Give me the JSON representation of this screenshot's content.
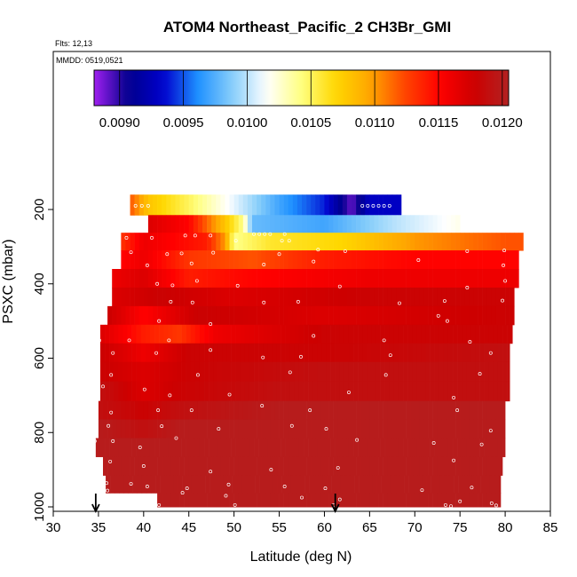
{
  "chart_data": {
    "type": "heatmap",
    "title": "ATOM4 Northeast_Pacific_2 CH3Br_GMI",
    "flights_label": "Flts: 12,13",
    "dates_label": "MMDD: 0519,0521",
    "xlabel": "Latitude (deg N)",
    "ylabel": "PSXC (mbar)",
    "xlim": [
      30,
      85
    ],
    "ylim": [
      1000,
      100
    ],
    "x_ticks": [
      30,
      35,
      40,
      45,
      50,
      55,
      60,
      65,
      70,
      75,
      80,
      85
    ],
    "y_ticks": [
      200,
      400,
      600,
      800,
      1000
    ],
    "colorbar": {
      "min": 0.0088,
      "max": 0.01205,
      "ticks": [
        "0.0090",
        "0.0095",
        "0.0100",
        "0.0105",
        "0.0110",
        "0.0115",
        "0.0120"
      ],
      "tick_values": [
        0.009,
        0.0095,
        0.01,
        0.0105,
        0.011,
        0.0115,
        0.012
      ],
      "colors": [
        "#a020f0",
        "#00008b",
        "#0000cd",
        "#1e90ff",
        "#87cefa",
        "#ffffff",
        "#ffff80",
        "#ffd700",
        "#ffa500",
        "#ff4500",
        "#ff0000",
        "#cd0000",
        "#b22222"
      ]
    },
    "arrows_at_latitude": [
      34.7,
      61.2
    ],
    "rows": [
      {
        "p": 190,
        "lat_start": 38.5,
        "lat_end": 68.5,
        "segments": [
          [
            38.5,
            0.0112
          ],
          [
            40.5,
            0.0108
          ],
          [
            45,
            0.0105
          ],
          [
            50,
            0.0101
          ],
          [
            55,
            0.0097
          ],
          [
            60,
            0.0094
          ],
          [
            63,
            0.0089
          ],
          [
            65,
            0.0093
          ],
          [
            68.5,
            0.0093
          ]
        ]
      },
      {
        "p": 240,
        "lat_start": 40.5,
        "lat_end": 75,
        "segments": [
          [
            40.5,
            0.0117
          ],
          [
            45,
            0.0115
          ],
          [
            49,
            0.0108
          ],
          [
            51,
            0.0104
          ],
          [
            52,
            0.0098
          ],
          [
            60,
            0.0097
          ],
          [
            68,
            0.01
          ],
          [
            75,
            0.0102
          ]
        ]
      },
      {
        "p": 285,
        "lat_start": 37.5,
        "lat_end": 82,
        "segments": [
          [
            37.5,
            0.0113
          ],
          [
            40,
            0.0116
          ],
          [
            47,
            0.0114
          ],
          [
            49,
            0.011
          ],
          [
            50,
            0.0104
          ],
          [
            54,
            0.0106
          ],
          [
            62,
            0.0107
          ],
          [
            70,
            0.011
          ],
          [
            80,
            0.0112
          ],
          [
            82,
            0.0112
          ]
        ]
      },
      {
        "p": 335,
        "lat_start": 37.5,
        "lat_end": 81.5,
        "segments": [
          [
            37.5,
            0.0115
          ],
          [
            40,
            0.0116
          ],
          [
            45,
            0.0113
          ],
          [
            52,
            0.0112
          ],
          [
            60,
            0.0114
          ],
          [
            70,
            0.0115
          ],
          [
            81.5,
            0.0115
          ]
        ]
      },
      {
        "p": 385,
        "lat_start": 36.5,
        "lat_end": 81.5,
        "segments": [
          [
            36.5,
            0.0116
          ],
          [
            40,
            0.0117
          ],
          [
            45,
            0.0114
          ],
          [
            52,
            0.0115
          ],
          [
            65,
            0.0116
          ],
          [
            81.5,
            0.0116
          ]
        ]
      },
      {
        "p": 435,
        "lat_start": 36.5,
        "lat_end": 81,
        "segments": [
          [
            36.5,
            0.0117
          ],
          [
            42,
            0.0118
          ],
          [
            50,
            0.0117
          ],
          [
            65,
            0.0118
          ],
          [
            81,
            0.0118
          ]
        ]
      },
      {
        "p": 485,
        "lat_start": 36,
        "lat_end": 81,
        "segments": [
          [
            36,
            0.0118
          ],
          [
            40,
            0.0115
          ],
          [
            46,
            0.0118
          ],
          [
            60,
            0.0117
          ],
          [
            81,
            0.0118
          ]
        ]
      },
      {
        "p": 535,
        "lat_start": 35.2,
        "lat_end": 80.8,
        "segments": [
          [
            35.2,
            0.0117
          ],
          [
            40,
            0.0114
          ],
          [
            44,
            0.0113
          ],
          [
            48,
            0.0116
          ],
          [
            60,
            0.0118
          ],
          [
            80.8,
            0.0118
          ]
        ]
      },
      {
        "p": 585,
        "lat_start": 35.2,
        "lat_end": 80.5,
        "segments": [
          [
            35.2,
            0.0118
          ],
          [
            40,
            0.0116
          ],
          [
            45,
            0.0118
          ],
          [
            60,
            0.0118
          ],
          [
            80.5,
            0.0119
          ]
        ]
      },
      {
        "p": 635,
        "lat_start": 35.2,
        "lat_end": 80.5,
        "segments": [
          [
            35.2,
            0.0118
          ],
          [
            40,
            0.0117
          ],
          [
            45,
            0.0118
          ],
          [
            60,
            0.0119
          ],
          [
            80.5,
            0.0119
          ]
        ]
      },
      {
        "p": 690,
        "lat_start": 35.2,
        "lat_end": 80.5,
        "segments": [
          [
            35.2,
            0.0119
          ],
          [
            40,
            0.0117
          ],
          [
            44,
            0.0118
          ],
          [
            55,
            0.0119
          ],
          [
            80.5,
            0.0119
          ]
        ]
      },
      {
        "p": 740,
        "lat_start": 35,
        "lat_end": 80,
        "segments": [
          [
            35,
            0.0119
          ],
          [
            40,
            0.0118
          ],
          [
            44,
            0.0119
          ],
          [
            55,
            0.012
          ],
          [
            80,
            0.012
          ]
        ]
      },
      {
        "p": 790,
        "lat_start": 35,
        "lat_end": 80,
        "segments": [
          [
            35,
            0.012
          ],
          [
            40,
            0.0119
          ],
          [
            44,
            0.012
          ],
          [
            55,
            0.012
          ],
          [
            80,
            0.012
          ]
        ]
      },
      {
        "p": 840,
        "lat_start": 34.7,
        "lat_end": 80,
        "segments": [
          [
            34.7,
            0.012
          ],
          [
            40,
            0.012
          ],
          [
            50,
            0.012
          ],
          [
            80,
            0.012
          ]
        ]
      },
      {
        "p": 890,
        "lat_start": 35.5,
        "lat_end": 79.7,
        "segments": [
          [
            35.5,
            0.012
          ],
          [
            42,
            0.012
          ],
          [
            55,
            0.012
          ],
          [
            79.7,
            0.012
          ]
        ]
      },
      {
        "p": 940,
        "lat_start": 35.8,
        "lat_end": 79.5,
        "segments": [
          [
            35.8,
            0.012
          ],
          [
            42,
            0.012
          ],
          [
            55,
            0.012
          ],
          [
            79.5,
            0.012
          ]
        ]
      },
      {
        "p": 985,
        "lat_start": 41.5,
        "lat_end": 79.5,
        "segments": [
          [
            41.5,
            0.012
          ],
          [
            55,
            0.012
          ],
          [
            79.5,
            0.012
          ]
        ]
      }
    ],
    "points": [
      [
        38.3,
        190
      ],
      [
        39.1,
        190
      ],
      [
        39.8,
        190
      ],
      [
        40.5,
        190
      ],
      [
        64.2,
        190
      ],
      [
        64.8,
        190
      ],
      [
        65.4,
        190
      ],
      [
        66.0,
        190
      ],
      [
        66.6,
        190
      ],
      [
        67.2,
        190
      ],
      [
        52.2,
        266
      ],
      [
        52.8,
        266
      ],
      [
        53.4,
        266
      ],
      [
        54.0,
        266
      ],
      [
        55.6,
        266
      ],
      [
        55.3,
        284
      ],
      [
        56.1,
        284
      ],
      [
        38.1,
        276
      ],
      [
        40.9,
        276
      ],
      [
        44.6,
        270
      ],
      [
        45.7,
        270
      ],
      [
        47.4,
        270
      ],
      [
        50.2,
        284
      ],
      [
        38.6,
        315
      ],
      [
        42.6,
        320
      ],
      [
        44.2,
        318
      ],
      [
        47.7,
        316
      ],
      [
        55.0,
        320
      ],
      [
        59.3,
        308
      ],
      [
        62.3,
        312
      ],
      [
        75.8,
        312
      ],
      [
        79.9,
        310
      ],
      [
        40.4,
        350
      ],
      [
        45.3,
        345
      ],
      [
        53.3,
        348
      ],
      [
        58.8,
        340
      ],
      [
        70.4,
        336
      ],
      [
        79.8,
        350
      ],
      [
        41.5,
        400
      ],
      [
        43.2,
        404
      ],
      [
        45.9,
        392
      ],
      [
        50.4,
        405
      ],
      [
        61.7,
        407
      ],
      [
        75.8,
        410
      ],
      [
        80.0,
        392
      ],
      [
        43.0,
        448
      ],
      [
        45.4,
        450
      ],
      [
        53.3,
        450
      ],
      [
        57.1,
        448
      ],
      [
        68.3,
        452
      ],
      [
        73.3,
        446
      ],
      [
        79.7,
        445
      ],
      [
        41.7,
        500
      ],
      [
        47.4,
        508
      ],
      [
        72.6,
        486
      ],
      [
        73.6,
        500
      ],
      [
        35.1,
        552
      ],
      [
        38.4,
        552
      ],
      [
        42.8,
        552
      ],
      [
        58.8,
        540
      ],
      [
        66.6,
        552
      ],
      [
        76.1,
        556
      ],
      [
        36.6,
        586
      ],
      [
        41.4,
        586
      ],
      [
        47.4,
        578
      ],
      [
        53.2,
        598
      ],
      [
        57.4,
        596
      ],
      [
        67.3,
        592
      ],
      [
        78.4,
        586
      ],
      [
        36.4,
        645
      ],
      [
        46.0,
        645
      ],
      [
        56.2,
        638
      ],
      [
        66.8,
        645
      ],
      [
        77.2,
        642
      ],
      [
        35.5,
        676
      ],
      [
        40.1,
        684
      ],
      [
        42.9,
        700
      ],
      [
        49.5,
        698
      ],
      [
        62.7,
        692
      ],
      [
        74.3,
        706
      ],
      [
        36.4,
        746
      ],
      [
        41.6,
        740
      ],
      [
        45.3,
        740
      ],
      [
        53.1,
        728
      ],
      [
        58.4,
        740
      ],
      [
        74.7,
        740
      ],
      [
        36.1,
        782
      ],
      [
        42.0,
        783
      ],
      [
        48.3,
        790
      ],
      [
        56.4,
        782
      ],
      [
        60.2,
        790
      ],
      [
        78.4,
        795
      ],
      [
        34.6,
        823
      ],
      [
        36.6,
        823
      ],
      [
        39.6,
        840
      ],
      [
        43.6,
        815
      ],
      [
        63.6,
        820
      ],
      [
        72.1,
        828
      ],
      [
        77.4,
        832
      ],
      [
        36.3,
        878
      ],
      [
        40.0,
        890
      ],
      [
        47.4,
        905
      ],
      [
        54.1,
        900
      ],
      [
        61.5,
        895
      ],
      [
        74.3,
        875
      ],
      [
        35.9,
        936
      ],
      [
        38.6,
        938
      ],
      [
        40.4,
        945
      ],
      [
        44.8,
        950
      ],
      [
        49.4,
        940
      ],
      [
        55.6,
        945
      ],
      [
        60.1,
        950
      ],
      [
        70.8,
        955
      ],
      [
        76.3,
        948
      ],
      [
        36.0,
        956
      ],
      [
        44.3,
        962
      ],
      [
        49.1,
        970
      ],
      [
        57.5,
        975
      ],
      [
        61.7,
        980
      ],
      [
        75.0,
        985
      ],
      [
        78.5,
        990
      ],
      [
        41.7,
        995
      ],
      [
        50.1,
        995
      ],
      [
        61.0,
        995
      ],
      [
        73.4,
        995
      ],
      [
        74.0,
        998
      ],
      [
        79.0,
        996
      ]
    ]
  }
}
